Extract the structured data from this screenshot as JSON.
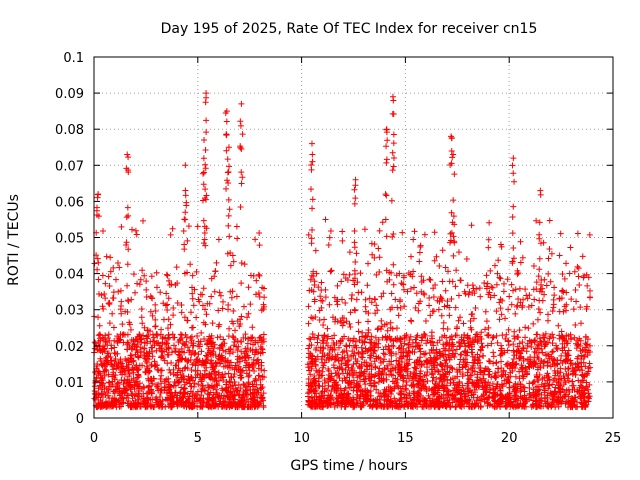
{
  "chart_data": {
    "type": "scatter",
    "title": "Day 195 of 2025, Rate Of TEC Index for receiver cn15",
    "xlabel": "GPS time / hours",
    "ylabel": "ROTI / TECUs",
    "xlim": [
      0,
      25
    ],
    "ylim": [
      0,
      0.1
    ],
    "grid": true,
    "marker": "+",
    "series": [
      {
        "name": "cn15",
        "color": "#ff0000",
        "segments": [
          {
            "x_range": [
              0.0,
              8.2
            ],
            "typical_range": [
              0.003,
              0.03
            ]
          },
          {
            "x_range": [
              10.3,
              23.9
            ],
            "typical_range": [
              0.003,
              0.03
            ]
          }
        ],
        "gap": [
          8.2,
          10.3
        ],
        "notable_peaks": [
          {
            "x": 0.2,
            "y": 0.062
          },
          {
            "x": 1.6,
            "y": 0.073
          },
          {
            "x": 4.4,
            "y": 0.07
          },
          {
            "x": 5.4,
            "y": 0.09
          },
          {
            "x": 5.3,
            "y": 0.077
          },
          {
            "x": 6.4,
            "y": 0.085
          },
          {
            "x": 6.5,
            "y": 0.075
          },
          {
            "x": 7.1,
            "y": 0.087
          },
          {
            "x": 10.5,
            "y": 0.076
          },
          {
            "x": 12.6,
            "y": 0.066
          },
          {
            "x": 14.1,
            "y": 0.08
          },
          {
            "x": 14.4,
            "y": 0.089
          },
          {
            "x": 17.2,
            "y": 0.078
          },
          {
            "x": 17.3,
            "y": 0.073
          },
          {
            "x": 20.2,
            "y": 0.072
          },
          {
            "x": 21.5,
            "y": 0.063
          }
        ]
      }
    ],
    "x_ticks": [
      "0",
      "5",
      "10",
      "15",
      "20",
      "25"
    ],
    "y_ticks": [
      "0",
      "0.01",
      "0.02",
      "0.03",
      "0.04",
      "0.05",
      "0.06",
      "0.07",
      "0.08",
      "0.09",
      "0.1"
    ]
  }
}
